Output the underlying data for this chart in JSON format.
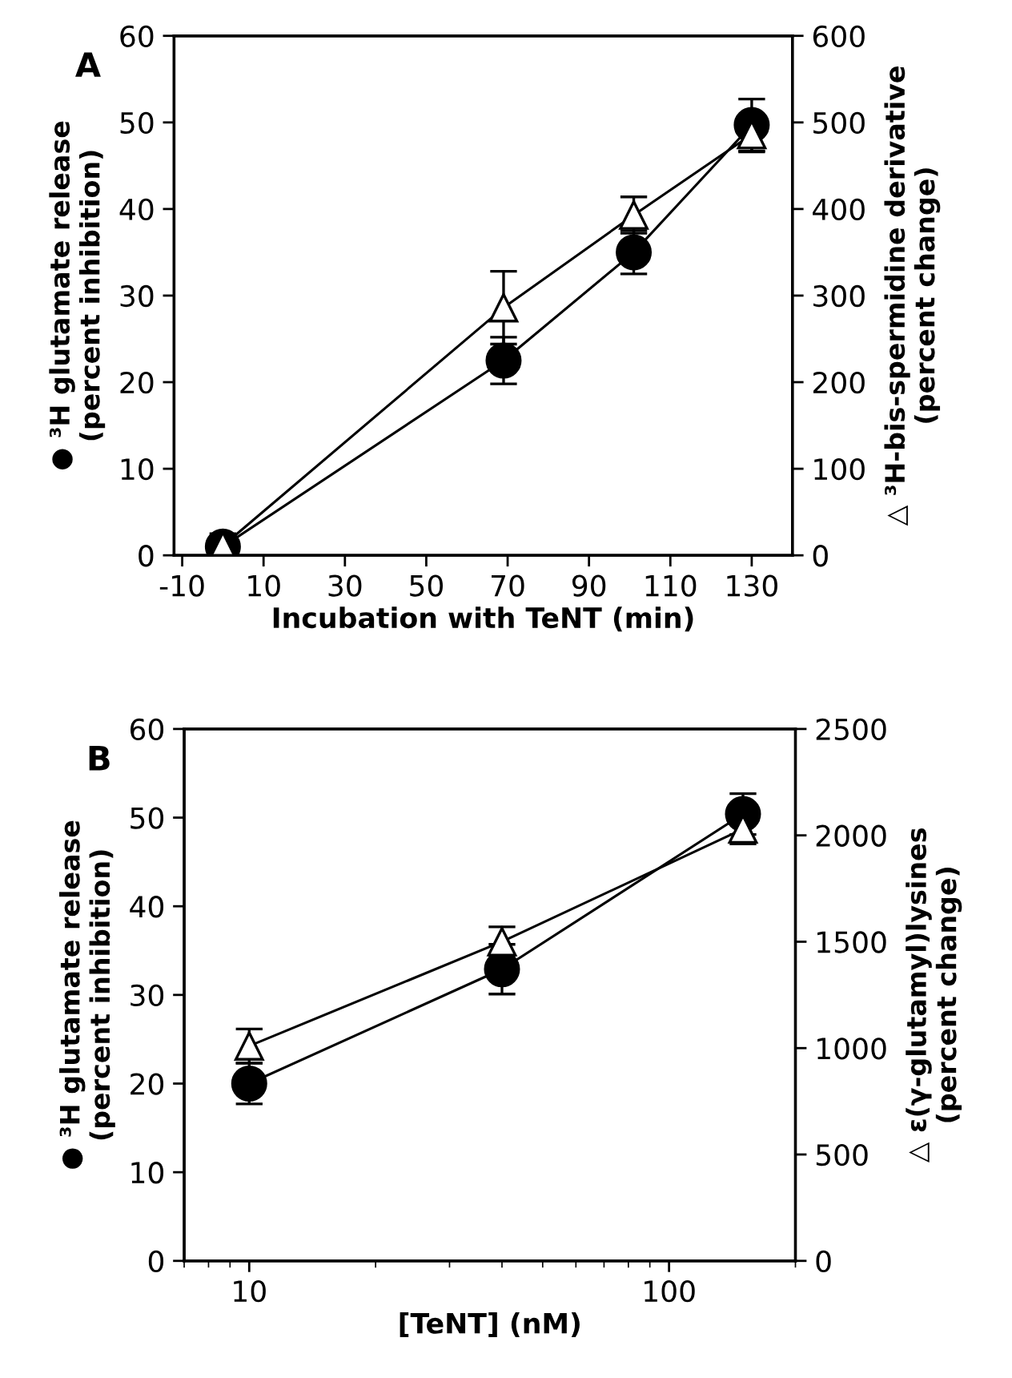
{
  "chart_data": [
    {
      "type": "line",
      "title": "A",
      "xlabel": "Incubation with TeNT (min)",
      "ylabel": "● ³H glutamate release\n(percent inhibition)",
      "y2label": "△ ³H-bis-spermidine derivative\n(percent change)",
      "xlim": [
        -12,
        140
      ],
      "xticks": [
        -10,
        10,
        30,
        50,
        70,
        90,
        110,
        130
      ],
      "ylim": [
        0,
        60
      ],
      "yticks": [
        0,
        10,
        20,
        30,
        40,
        50,
        60
      ],
      "y2lim": [
        0,
        600
      ],
      "y2ticks": [
        0,
        100,
        200,
        300,
        400,
        500,
        600
      ],
      "grid": false,
      "legend": false,
      "line_style": "solid",
      "series": [
        {
          "color": "#000000",
          "marker": "circle",
          "x": [
            0,
            69,
            101,
            130
          ],
          "values": [
            1,
            22.5,
            35,
            49.7
          ],
          "errors": [
            1.5,
            2.7,
            2.5,
            3
          ]
        },
        {
          "color": "#000000",
          "marker": "triangle",
          "axis": "y2",
          "x": [
            0,
            69,
            101,
            130
          ],
          "values": [
            11,
            286,
            393,
            486
          ],
          "errors": [
            10,
            42,
            21,
            20
          ]
        }
      ]
    },
    {
      "type": "line",
      "title": "B",
      "xlabel": "[TeNT] (nM)",
      "ylabel": "● ³H glutamate release\n(percent inhibition)",
      "y2label": "△ ε(γ-glutamyl)lysines\n(percent change)",
      "log": "x",
      "xlim": [
        7,
        200
      ],
      "xticks": [
        10,
        100
      ],
      "ylim": [
        0,
        60
      ],
      "yticks": [
        0,
        10,
        20,
        30,
        40,
        50,
        60
      ],
      "y2lim": [
        0,
        2500
      ],
      "y2ticks": [
        0,
        500,
        1000,
        1500,
        2000,
        2500
      ],
      "grid": false,
      "legend": false,
      "line_style": "solid",
      "series": [
        {
          "color": "#000000",
          "marker": "circle",
          "x": [
            10,
            40,
            150
          ],
          "values": [
            20,
            32.9,
            50.4
          ],
          "errors": [
            2.3,
            2.8,
            2.3
          ]
        },
        {
          "color": "#000000",
          "marker": "triangle",
          "axis": "y2",
          "x": [
            10,
            40,
            150
          ],
          "values": [
            1010,
            1500,
            2030
          ],
          "errors": [
            80,
            70,
            70
          ]
        }
      ]
    }
  ]
}
